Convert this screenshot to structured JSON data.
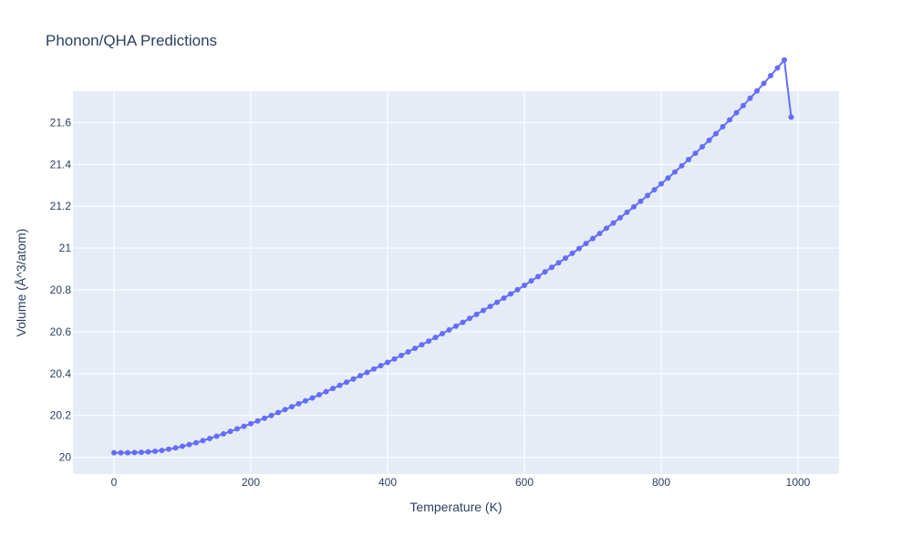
{
  "chart_data": {
    "type": "line",
    "title": "Phonon/QHA Predictions",
    "xlabel": "Temperature (K)",
    "ylabel": "Volume (Å^3/atom)",
    "xlim": [
      -60,
      1060
    ],
    "ylim": [
      19.92,
      21.75
    ],
    "xticks": [
      0,
      200,
      400,
      600,
      800,
      1000
    ],
    "yticks": [
      20,
      20.2,
      20.4,
      20.6,
      20.8,
      21,
      21.2,
      21.4,
      21.6
    ],
    "ytick_labels": [
      "20",
      "20.2",
      "20.4",
      "20.6",
      "20.8",
      "21",
      "21.2",
      "21.4",
      "21.6"
    ],
    "grid": true,
    "series": [
      {
        "color": "#636efa",
        "mode": "lines+markers",
        "x": [
          0,
          10,
          20,
          30,
          40,
          50,
          60,
          70,
          80,
          90,
          100,
          110,
          120,
          130,
          140,
          150,
          160,
          170,
          180,
          190,
          200,
          210,
          220,
          230,
          240,
          250,
          260,
          270,
          280,
          290,
          300,
          310,
          320,
          330,
          340,
          350,
          360,
          370,
          380,
          390,
          400,
          410,
          420,
          430,
          440,
          450,
          460,
          470,
          480,
          490,
          500,
          510,
          520,
          530,
          540,
          550,
          560,
          570,
          580,
          590,
          600,
          610,
          620,
          630,
          640,
          650,
          660,
          670,
          680,
          690,
          700,
          710,
          720,
          730,
          740,
          750,
          760,
          770,
          780,
          790,
          800,
          810,
          820,
          830,
          840,
          850,
          860,
          870,
          880,
          890,
          900,
          910,
          920,
          930,
          940,
          950,
          960,
          970,
          980,
          990
        ],
        "y": [
          20.022,
          20.022,
          20.022,
          20.023,
          20.024,
          20.026,
          20.029,
          20.033,
          20.039,
          20.045,
          20.053,
          20.061,
          20.07,
          20.08,
          20.09,
          20.101,
          20.112,
          20.124,
          20.136,
          20.148,
          20.161,
          20.174,
          20.187,
          20.2,
          20.214,
          20.228,
          20.242,
          20.256,
          20.27,
          20.284,
          20.299,
          20.314,
          20.329,
          20.344,
          20.359,
          20.374,
          20.39,
          20.406,
          20.422,
          20.438,
          20.454,
          20.47,
          20.487,
          20.504,
          20.521,
          20.538,
          20.555,
          20.573,
          20.591,
          20.609,
          20.627,
          20.645,
          20.664,
          20.683,
          20.702,
          20.721,
          20.741,
          20.761,
          20.781,
          20.801,
          20.822,
          20.843,
          20.864,
          20.886,
          20.908,
          20.93,
          20.952,
          20.975,
          20.998,
          21.022,
          21.046,
          21.07,
          21.095,
          21.12,
          21.145,
          21.171,
          21.197,
          21.224,
          21.251,
          21.279,
          21.307,
          21.335,
          21.364,
          21.393,
          21.423,
          21.453,
          21.484,
          21.515,
          21.547,
          21.58,
          21.613,
          21.647,
          21.681,
          21.716,
          21.751,
          21.787,
          21.824,
          21.861,
          21.899,
          21.626
        ]
      }
    ]
  }
}
